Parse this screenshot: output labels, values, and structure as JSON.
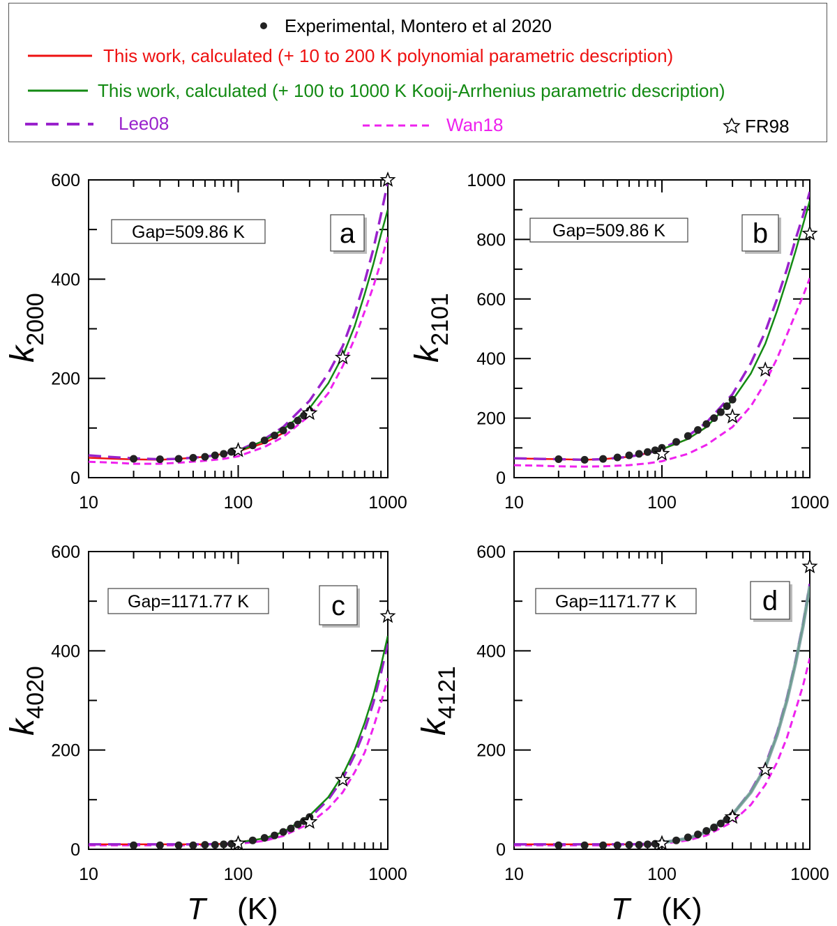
{
  "legend": {
    "experimental": "Experimental, Montero et al 2020",
    "poly": "This work, calculated (+ 10 to 200 K polynomial parametric description)",
    "kooij": "This work, calculated (+ 100 to 1000 K Kooij-Arrhenius parametric description)",
    "lee08": "Lee08",
    "wan18": "Wan18",
    "fr98": "FR98"
  },
  "colors": {
    "experimental": "#222222",
    "poly": "#ee1111",
    "kooij": "#138a13",
    "lee08": "#9922cc",
    "wan18": "#ee22ee",
    "fr98": "#000000",
    "d_overlay": "#7fa0a6"
  },
  "x_label_italic": "T",
  "x_label_unit": "(K)",
  "chart_data": [
    {
      "id": "a",
      "type": "line",
      "xscale": "log",
      "xlim": [
        10,
        1000
      ],
      "ylim": [
        0,
        600
      ],
      "xticks": [
        10,
        100,
        1000
      ],
      "yticks": [
        0,
        200,
        400,
        600
      ],
      "ylabel_main": "k",
      "ylabel_sub": "2000",
      "gap_label": "Gap=509.86 K",
      "series": [
        {
          "name": "This work (polynomial)",
          "x": [
            10,
            15,
            20,
            30,
            40,
            60,
            80,
            100,
            150,
            200
          ],
          "values": [
            40,
            38,
            37,
            36,
            38,
            42,
            48,
            53,
            70,
            90
          ]
        },
        {
          "name": "This work (Kooij-Arrhenius)",
          "x": [
            100,
            150,
            200,
            300,
            400,
            500,
            600,
            700,
            800,
            900,
            1000
          ],
          "values": [
            53,
            75,
            97,
            140,
            190,
            245,
            305,
            370,
            430,
            490,
            540
          ]
        },
        {
          "name": "Lee08",
          "x": [
            10,
            15,
            20,
            30,
            40,
            60,
            80,
            100,
            150,
            200,
            300,
            400,
            500,
            600,
            700,
            800,
            900,
            1000
          ],
          "values": [
            45,
            41,
            39,
            37,
            38,
            42,
            48,
            55,
            78,
            102,
            155,
            210,
            265,
            330,
            395,
            460,
            530,
            595
          ]
        },
        {
          "name": "Wan18",
          "x": [
            10,
            15,
            20,
            30,
            40,
            60,
            80,
            100,
            150,
            200,
            300,
            400,
            500,
            600,
            700,
            800,
            900,
            1000
          ],
          "values": [
            32,
            30,
            28,
            28,
            30,
            34,
            38,
            43,
            62,
            82,
            125,
            170,
            225,
            280,
            335,
            385,
            435,
            485
          ]
        }
      ],
      "experimental": {
        "x": [
          20,
          30,
          40,
          50,
          60,
          70,
          80,
          90,
          100,
          125,
          150,
          175,
          200,
          225,
          250,
          275,
          300
        ],
        "values": [
          38,
          37,
          38,
          40,
          42,
          45,
          48,
          52,
          55,
          65,
          75,
          85,
          95,
          105,
          115,
          125,
          135
        ]
      },
      "fr98": {
        "x": [
          100,
          300,
          500,
          1000
        ],
        "values": [
          55,
          130,
          242,
          600
        ]
      }
    },
    {
      "id": "b",
      "type": "line",
      "xscale": "log",
      "xlim": [
        10,
        1000
      ],
      "ylim": [
        0,
        1000
      ],
      "xticks": [
        10,
        100,
        1000
      ],
      "yticks": [
        0,
        200,
        400,
        600,
        800,
        1000
      ],
      "ylabel_main": "k",
      "ylabel_sub": "2101",
      "gap_label": "Gap=509.86 K",
      "series": [
        {
          "name": "This work (polynomial)",
          "x": [
            10,
            15,
            20,
            30,
            40,
            60,
            80,
            100,
            150,
            200
          ],
          "values": [
            65,
            63,
            62,
            60,
            62,
            70,
            82,
            95,
            130,
            170
          ]
        },
        {
          "name": "This work (Kooij-Arrhenius)",
          "x": [
            100,
            150,
            200,
            300,
            400,
            500,
            600,
            700,
            800,
            900,
            1000
          ],
          "values": [
            95,
            130,
            170,
            260,
            350,
            450,
            560,
            665,
            760,
            850,
            930
          ]
        },
        {
          "name": "Lee08",
          "x": [
            10,
            15,
            20,
            30,
            40,
            60,
            80,
            100,
            150,
            200,
            300,
            400,
            500,
            600,
            700,
            800,
            900,
            1000
          ],
          "values": [
            65,
            63,
            62,
            60,
            62,
            70,
            82,
            97,
            140,
            185,
            280,
            385,
            490,
            600,
            700,
            800,
            880,
            960
          ]
        },
        {
          "name": "Wan18",
          "x": [
            10,
            15,
            20,
            30,
            40,
            60,
            80,
            100,
            150,
            200,
            300,
            400,
            500,
            600,
            700,
            800,
            900,
            1000
          ],
          "values": [
            42,
            40,
            38,
            37,
            38,
            42,
            48,
            55,
            80,
            110,
            170,
            240,
            320,
            400,
            480,
            550,
            610,
            670
          ]
        }
      ],
      "experimental": {
        "x": [
          20,
          30,
          40,
          50,
          60,
          70,
          80,
          90,
          100,
          125,
          150,
          175,
          200,
          225,
          250,
          275,
          300
        ],
        "values": [
          62,
          60,
          63,
          68,
          75,
          80,
          86,
          92,
          100,
          120,
          140,
          160,
          180,
          200,
          220,
          240,
          262
        ]
      },
      "fr98": {
        "x": [
          100,
          300,
          500,
          1000
        ],
        "values": [
          80,
          205,
          362,
          820
        ]
      }
    },
    {
      "id": "c",
      "type": "line",
      "xscale": "log",
      "xlim": [
        10,
        1000
      ],
      "ylim": [
        0,
        600
      ],
      "xticks": [
        10,
        100,
        1000
      ],
      "yticks": [
        0,
        200,
        400,
        600
      ],
      "ylabel_main": "k",
      "ylabel_sub": "4020",
      "gap_label": "Gap=1171.77 K",
      "series": [
        {
          "name": "This work (polynomial)",
          "x": [
            10,
            20,
            40,
            60,
            80,
            100,
            150,
            200
          ],
          "values": [
            10,
            10,
            10,
            10,
            11,
            14,
            22,
            35
          ]
        },
        {
          "name": "This work (Kooij-Arrhenius)",
          "x": [
            100,
            150,
            200,
            300,
            400,
            500,
            600,
            700,
            800,
            900,
            1000
          ],
          "values": [
            14,
            22,
            35,
            68,
            105,
            150,
            200,
            255,
            310,
            370,
            430
          ]
        },
        {
          "name": "Lee08",
          "x": [
            10,
            20,
            40,
            60,
            80,
            100,
            150,
            200,
            300,
            400,
            500,
            600,
            700,
            800,
            900,
            1000
          ],
          "values": [
            10,
            10,
            10,
            10,
            11,
            13,
            20,
            32,
            63,
            100,
            142,
            190,
            240,
            295,
            355,
            415
          ]
        },
        {
          "name": "Wan18",
          "x": [
            10,
            20,
            40,
            60,
            80,
            100,
            150,
            200,
            300,
            400,
            500,
            600,
            700,
            800,
            900,
            1000
          ],
          "values": [
            8,
            8,
            8,
            8,
            9,
            11,
            17,
            27,
            52,
            82,
            115,
            155,
            195,
            245,
            295,
            345
          ]
        }
      ],
      "experimental": {
        "x": [
          20,
          30,
          40,
          50,
          60,
          70,
          80,
          90,
          100,
          125,
          150,
          175,
          200,
          225,
          250,
          275,
          300
        ],
        "values": [
          8,
          8,
          8,
          8,
          9,
          9,
          10,
          11,
          13,
          18,
          23,
          28,
          35,
          42,
          50,
          57,
          65
        ]
      },
      "fr98": {
        "x": [
          100,
          300,
          500,
          1000
        ],
        "values": [
          12,
          55,
          140,
          470
        ]
      }
    },
    {
      "id": "d",
      "type": "line",
      "xscale": "log",
      "xlim": [
        10,
        1000
      ],
      "ylim": [
        0,
        600
      ],
      "xticks": [
        10,
        100,
        1000
      ],
      "yticks": [
        0,
        200,
        400,
        600
      ],
      "ylabel_main": "k",
      "ylabel_sub": "4121",
      "gap_label": "Gap=1171.77 K",
      "series": [
        {
          "name": "This work (polynomial)",
          "x": [
            10,
            20,
            40,
            60,
            80,
            100,
            150,
            200
          ],
          "values": [
            10,
            10,
            10,
            10,
            11,
            13,
            22,
            35
          ]
        },
        {
          "name": "This work (Kooij-Arrhenius)",
          "x": [
            100,
            150,
            200,
            300,
            400,
            500,
            600,
            700,
            800,
            900,
            1000
          ],
          "values": [
            13,
            22,
            35,
            70,
            115,
            165,
            230,
            300,
            375,
            450,
            530
          ]
        },
        {
          "name": "Lee08",
          "x": [
            10,
            20,
            40,
            60,
            80,
            100,
            150,
            200,
            300,
            400,
            500,
            600,
            700,
            800,
            900,
            1000
          ],
          "values": [
            10,
            10,
            10,
            10,
            11,
            13,
            22,
            35,
            70,
            118,
            170,
            235,
            305,
            380,
            455,
            535
          ]
        },
        {
          "name": "Wan18",
          "x": [
            10,
            20,
            40,
            60,
            80,
            100,
            150,
            200,
            300,
            400,
            500,
            600,
            700,
            800,
            900,
            1000
          ],
          "values": [
            8,
            8,
            8,
            8,
            9,
            11,
            18,
            28,
            55,
            90,
            130,
            175,
            225,
            280,
            330,
            385
          ]
        }
      ],
      "experimental": {
        "x": [
          20,
          30,
          40,
          50,
          60,
          70,
          80,
          90,
          100,
          125,
          150,
          175,
          200,
          225,
          250,
          275,
          300
        ],
        "values": [
          8,
          8,
          8,
          8,
          9,
          9,
          10,
          11,
          13,
          18,
          24,
          30,
          37,
          44,
          52,
          60,
          68
        ]
      },
      "fr98": {
        "x": [
          100,
          300,
          500,
          1000
        ],
        "values": [
          12,
          65,
          160,
          570
        ]
      }
    }
  ]
}
